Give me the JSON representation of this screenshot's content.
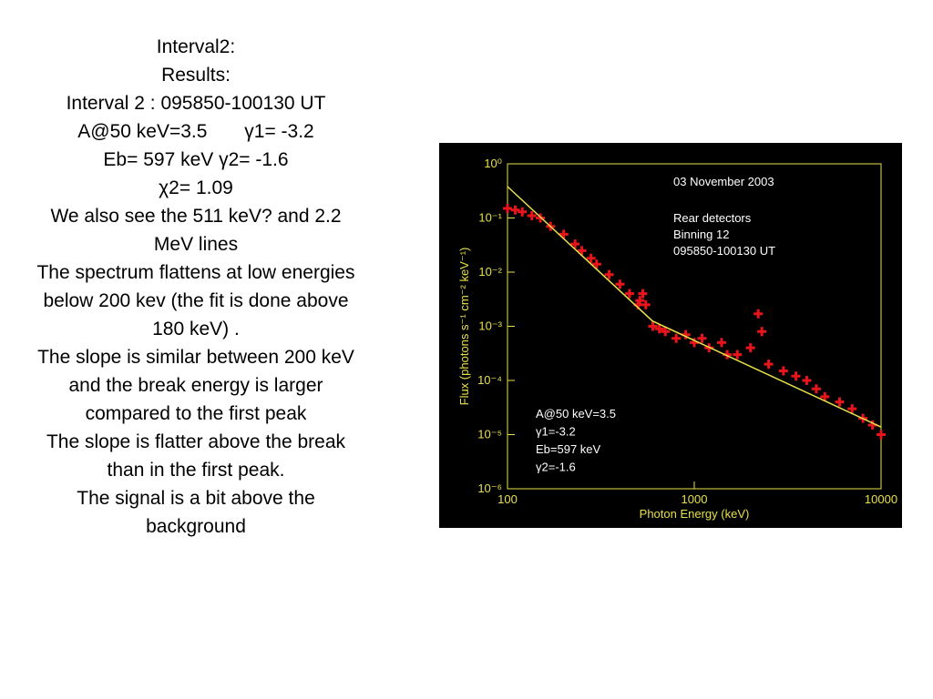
{
  "slide": {
    "paragraphs": [
      "Interval2:",
      "Results:",
      "Interval 2 : 095850-100130 UT",
      "A@50 keV=3.5       γ1= -3.2",
      "Eb= 597 keV γ2= -1.6",
      "χ2= 1.09",
      "We also see the 511 keV? and 2.2 MeV lines",
      "The spectrum flattens at low energies below 200 kev (the fit is done above 180 keV) .",
      "The slope is similar between 200 keV and the break energy is larger compared to the first peak",
      "The slope is flatter above the break than in the first peak.",
      "The signal is a bit above the background"
    ]
  },
  "chart_data": {
    "type": "scatter",
    "xlabel": "Photon Energy (keV)",
    "ylabel": "Flux (photons s⁻¹ cm⁻² keV⁻¹)",
    "annotations": [
      "03 November 2003",
      "Rear detectors",
      "Binning 12",
      "095850-100130 UT"
    ],
    "fit_annotations": [
      "A@50 keV=3.5",
      "γ1=-3.2",
      "Eb=597 keV",
      "γ2=-1.6"
    ],
    "xlog": true,
    "ylog": true,
    "xlim": [
      100,
      10000
    ],
    "xticks": [
      100,
      1000,
      10000
    ],
    "ylim": [
      1e-06,
      1
    ],
    "yticks": [
      {
        "value": 1,
        "label": "10⁰"
      },
      {
        "value": 0.1,
        "label": "10⁻¹"
      },
      {
        "value": 0.01,
        "label": "10⁻²"
      },
      {
        "value": 0.001,
        "label": "10⁻³"
      },
      {
        "value": 0.0001,
        "label": "10⁻⁴"
      },
      {
        "value": 1e-05,
        "label": "10⁻⁵"
      },
      {
        "value": 1e-06,
        "label": "10⁻⁶"
      }
    ],
    "series": [
      {
        "name": "Data",
        "color": "#e8141c",
        "x": [
          100,
          110,
          120,
          135,
          150,
          170,
          200,
          230,
          250,
          280,
          300,
          350,
          400,
          450,
          500,
          511,
          530,
          550,
          600,
          650,
          700,
          800,
          900,
          1000,
          1100,
          1200,
          1400,
          1500,
          1700,
          2000,
          2200,
          2300,
          2500,
          3000,
          3500,
          4000,
          4500,
          5000,
          6000,
          7000,
          8000,
          9000,
          10000
        ],
        "values": [
          0.15,
          0.14,
          0.13,
          0.11,
          0.1,
          0.07,
          0.05,
          0.033,
          0.025,
          0.018,
          0.014,
          0.009,
          0.006,
          0.004,
          0.0025,
          0.003,
          0.004,
          0.0025,
          0.001,
          0.0009,
          0.0008,
          0.0006,
          0.0007,
          0.0005,
          0.0006,
          0.0004,
          0.0005,
          0.0003,
          0.0003,
          0.0004,
          0.0017,
          0.0008,
          0.0002,
          0.00015,
          0.00012,
          0.0001,
          7e-05,
          5e-05,
          4e-05,
          3e-05,
          2e-05,
          1.5e-05,
          1e-05
        ]
      },
      {
        "name": "Fit",
        "color": "#e8e04a",
        "x": [
          100,
          597,
          10000
        ],
        "values": [
          0.38,
          0.00125,
          1.38e-05
        ]
      }
    ]
  }
}
